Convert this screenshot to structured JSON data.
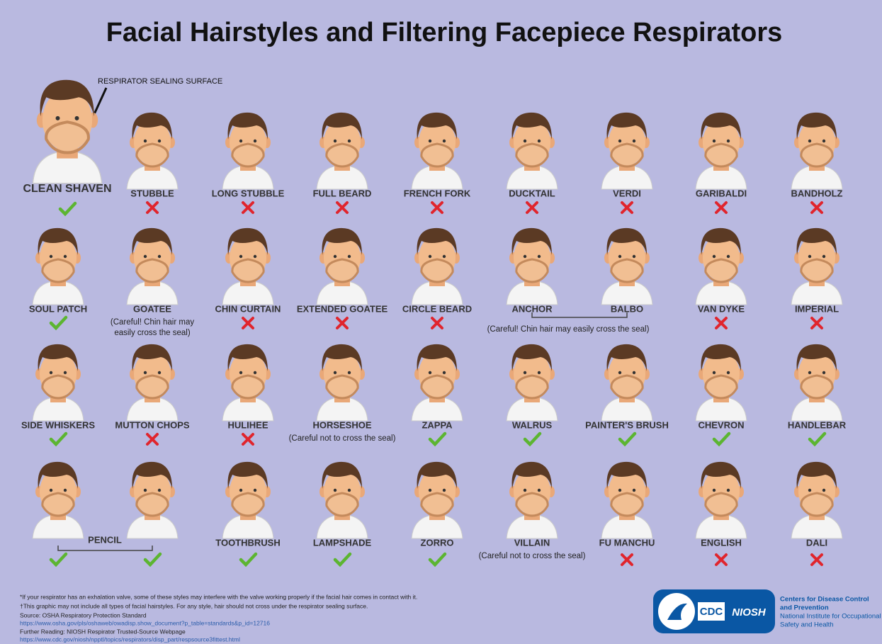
{
  "title": "Facial Hairstyles and Filtering Facepiece Respirators",
  "annotation": "RESPIRATOR SEALING SURFACE",
  "rows": [
    [
      {
        "name": "CLEAN SHAVEN",
        "ok": true
      },
      {
        "name": "STUBBLE",
        "ok": false
      },
      {
        "name": "LONG STUBBLE",
        "ok": false
      },
      {
        "name": "FULL BEARD",
        "ok": false
      },
      {
        "name": "FRENCH FORK",
        "ok": false
      },
      {
        "name": "DUCKTAIL",
        "ok": false
      },
      {
        "name": "VERDI",
        "ok": false
      },
      {
        "name": "GARIBALDI",
        "ok": false
      },
      {
        "name": "BANDHOLZ",
        "ok": false
      }
    ],
    [
      {
        "name": "SOUL PATCH",
        "ok": true
      },
      {
        "name": "GOATEE",
        "note": [
          "(Careful! Chin hair may",
          "easily cross the seal)"
        ]
      },
      {
        "name": "CHIN CURTAIN",
        "ok": false
      },
      {
        "name": "EXTENDED GOATEE",
        "ok": false
      },
      {
        "name": "CIRCLE BEARD",
        "ok": false
      },
      {
        "name": "ANCHOR"
      },
      {
        "name": "BALBO"
      },
      {
        "name": "VAN DYKE",
        "ok": false
      },
      {
        "name": "IMPERIAL",
        "ok": false
      }
    ],
    [
      {
        "name": "SIDE WHISKERS",
        "ok": true
      },
      {
        "name": "MUTTON CHOPS",
        "ok": false
      },
      {
        "name": "HULIHEE",
        "ok": false
      },
      {
        "name": "HORSESHOE",
        "note": [
          "(Careful not to cross the seal)"
        ]
      },
      {
        "name": "ZAPPA",
        "ok": true
      },
      {
        "name": "WALRUS",
        "ok": true
      },
      {
        "name": "PAINTER'S BRUSH",
        "ok": true
      },
      {
        "name": "CHEVRON",
        "ok": true
      },
      {
        "name": "HANDLEBAR",
        "ok": true
      }
    ],
    [
      {
        "ok": true
      },
      {
        "ok": true
      },
      {
        "name": "TOOTHBRUSH",
        "ok": true
      },
      {
        "name": "LAMPSHADE",
        "ok": true
      },
      {
        "name": "ZORRO",
        "ok": true
      },
      {
        "name": "VILLAIN",
        "note": [
          "(Careful not to cross the seal)"
        ]
      },
      {
        "name": "FU MANCHU",
        "ok": false
      },
      {
        "name": "ENGLISH",
        "ok": false
      },
      {
        "name": "DALI",
        "ok": false
      }
    ]
  ],
  "groups": {
    "pencil": "PENCIL",
    "anchor_balbo": "(Careful! Chin hair may easily cross the seal)"
  },
  "footnotes": [
    "*If your respirator has an exhalation valve, some of these styles may interfere with the valve working properly if the facial hair comes in contact with it.",
    "†This graphic may not include all types of facial hairstyles. For any style, hair should not cross under the respirator sealing surface."
  ],
  "sources": [
    {
      "label": "Source: OSHA Respiratory Protection Standard",
      "url": "https://www.osha.gov/pls/oshaweb/owadisp.show_document?p_table=standards&p_id=12716"
    },
    {
      "label": "Further Reading: NIOSH Respirator Trusted-Source Webpage",
      "url": "https://www.cdc.gov/niosh/npptl/topics/respirators/disp_part/respsource3fittest.html"
    }
  ],
  "logo": {
    "cdc": "CDC",
    "niosh": "NIOSH",
    "org1": "Centers for Disease Control",
    "org2": "and Prevention",
    "org3": "National Institute for Occupational",
    "org4": "Safety and Health"
  }
}
